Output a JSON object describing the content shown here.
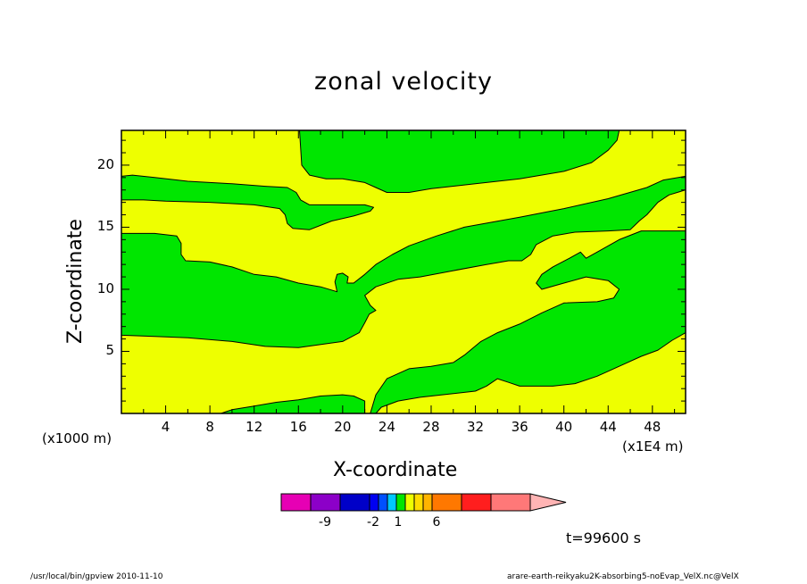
{
  "chart_data": {
    "type": "contour",
    "title": "zonal velocity",
    "xlabel": "X-coordinate",
    "ylabel": "Z-coordinate",
    "x_unit_note": "(x1E4 m)",
    "y_unit_note": "(x1000 m)",
    "xlim": [
      0,
      51
    ],
    "ylim": [
      0,
      22.8
    ],
    "x_ticks": [
      4,
      8,
      12,
      16,
      20,
      24,
      28,
      32,
      36,
      40,
      44,
      48
    ],
    "y_ticks": [
      5,
      10,
      15,
      20
    ],
    "fill_colors": {
      "yellow": "#eeff00",
      "green": "#00e600"
    },
    "regions": [
      {
        "name": "green-top",
        "color": "green",
        "outline": [
          [
            16.1,
            22.8
          ],
          [
            16.3,
            20
          ],
          [
            17,
            19.2
          ],
          [
            18.5,
            18.9
          ],
          [
            20,
            18.9
          ],
          [
            22,
            18.6
          ],
          [
            23,
            18.2
          ],
          [
            24,
            17.8
          ],
          [
            26,
            17.8
          ],
          [
            28,
            18.1
          ],
          [
            32,
            18.5
          ],
          [
            36,
            18.9
          ],
          [
            40,
            19.5
          ],
          [
            42.5,
            20.2
          ],
          [
            44,
            21.2
          ],
          [
            44.8,
            22
          ],
          [
            45,
            22.8
          ]
        ]
      },
      {
        "name": "green-left-upper-band",
        "color": "green",
        "outline": [
          [
            0,
            19.1
          ],
          [
            1,
            19.2
          ],
          [
            3,
            19
          ],
          [
            6,
            18.7
          ],
          [
            10,
            18.5
          ],
          [
            13,
            18.3
          ],
          [
            15,
            18.2
          ],
          [
            15.8,
            17.8
          ],
          [
            16.2,
            17.2
          ],
          [
            17,
            16.8
          ],
          [
            20,
            16.8
          ],
          [
            22,
            16.8
          ],
          [
            22.8,
            16.6
          ],
          [
            22.5,
            16.3
          ],
          [
            21,
            15.9
          ],
          [
            19,
            15.5
          ],
          [
            17,
            14.8
          ],
          [
            15.5,
            14.9
          ],
          [
            15,
            15.3
          ],
          [
            14.8,
            16
          ],
          [
            14.3,
            16.5
          ],
          [
            12,
            16.8
          ],
          [
            8,
            17
          ],
          [
            4,
            17.1
          ],
          [
            2,
            17.2
          ],
          [
            0,
            17.2
          ]
        ]
      },
      {
        "name": "green-middle-left-band",
        "color": "green",
        "outline": [
          [
            0,
            14.5
          ],
          [
            3,
            14.5
          ],
          [
            5,
            14.3
          ],
          [
            5.4,
            13.7
          ],
          [
            5.4,
            12.8
          ],
          [
            5.8,
            12.3
          ],
          [
            8,
            12.2
          ],
          [
            10,
            11.8
          ],
          [
            12,
            11.2
          ],
          [
            14,
            11
          ],
          [
            16,
            10.5
          ],
          [
            18,
            10.2
          ],
          [
            19.5,
            9.8
          ],
          [
            19.3,
            10.6
          ],
          [
            19.5,
            11.2
          ],
          [
            20,
            11.3
          ],
          [
            20.5,
            11
          ],
          [
            20.4,
            10.5
          ],
          [
            21,
            10.5
          ],
          [
            22,
            11.2
          ],
          [
            23,
            12
          ],
          [
            24.5,
            12.8
          ],
          [
            26,
            13.5
          ],
          [
            28.5,
            14.3
          ],
          [
            31,
            15
          ],
          [
            36,
            15.8
          ],
          [
            40,
            16.5
          ],
          [
            44,
            17.3
          ],
          [
            47.5,
            18.2
          ],
          [
            49,
            18.8
          ],
          [
            51,
            19.1
          ],
          [
            51,
            18
          ],
          [
            49.5,
            17.6
          ],
          [
            48.5,
            17
          ],
          [
            47.5,
            16
          ],
          [
            46.8,
            15.5
          ],
          [
            46,
            14.8
          ],
          [
            44,
            14.7
          ],
          [
            41,
            14.6
          ],
          [
            39,
            14.3
          ],
          [
            37.5,
            13.6
          ],
          [
            37,
            12.8
          ],
          [
            36.2,
            12.3
          ],
          [
            35,
            12.3
          ],
          [
            33,
            12
          ],
          [
            30,
            11.5
          ],
          [
            27,
            11
          ],
          [
            25,
            10.8
          ],
          [
            23,
            10.2
          ],
          [
            22,
            9.5
          ],
          [
            22.5,
            8.7
          ],
          [
            23,
            8.3
          ],
          [
            22.4,
            8
          ],
          [
            22,
            7.3
          ],
          [
            21.5,
            6.5
          ],
          [
            20,
            5.8
          ],
          [
            16,
            5.3
          ],
          [
            13,
            5.4
          ],
          [
            10,
            5.8
          ],
          [
            6,
            6.1
          ],
          [
            3,
            6.2
          ],
          [
            0,
            6.3
          ]
        ]
      },
      {
        "name": "green-lower-right-band",
        "color": "green",
        "outline": [
          [
            22.5,
            0
          ],
          [
            23,
            1.5
          ],
          [
            24,
            2.8
          ],
          [
            26,
            3.6
          ],
          [
            28,
            3.8
          ],
          [
            30,
            4.1
          ],
          [
            31,
            4.7
          ],
          [
            32.5,
            5.8
          ],
          [
            34,
            6.5
          ],
          [
            36,
            7.2
          ],
          [
            38,
            8.1
          ],
          [
            40,
            8.9
          ],
          [
            43,
            9
          ],
          [
            44.5,
            9.3
          ],
          [
            45,
            10
          ],
          [
            44,
            10.7
          ],
          [
            42,
            11
          ],
          [
            40,
            10.5
          ],
          [
            38,
            10
          ],
          [
            37.5,
            10.5
          ],
          [
            38,
            11.2
          ],
          [
            39,
            11.8
          ],
          [
            40.5,
            12.5
          ],
          [
            41.5,
            13
          ],
          [
            42,
            12.5
          ],
          [
            43,
            13
          ],
          [
            45,
            14
          ],
          [
            47,
            14.7
          ],
          [
            51,
            14.7
          ],
          [
            51,
            6.5
          ],
          [
            49.8,
            5.9
          ],
          [
            48.5,
            5.1
          ],
          [
            47,
            4.6
          ],
          [
            45,
            3.8
          ],
          [
            43,
            3
          ],
          [
            41,
            2.4
          ],
          [
            39,
            2.2
          ],
          [
            36,
            2.2
          ],
          [
            35,
            2.5
          ],
          [
            34,
            2.8
          ],
          [
            33,
            2.2
          ],
          [
            32,
            1.8
          ],
          [
            29,
            1.5
          ],
          [
            27,
            1.3
          ],
          [
            25,
            1
          ],
          [
            23.5,
            0.5
          ],
          [
            23,
            0
          ]
        ]
      },
      {
        "name": "green-bottom-strip",
        "color": "green",
        "outline": [
          [
            9,
            0
          ],
          [
            10,
            0.3
          ],
          [
            12,
            0.6
          ],
          [
            14,
            0.9
          ],
          [
            16,
            1.1
          ],
          [
            18,
            1.4
          ],
          [
            20,
            1.5
          ],
          [
            21,
            1.4
          ],
          [
            22,
            1
          ],
          [
            22,
            0
          ]
        ]
      }
    ],
    "colorbar": {
      "colors": [
        "#e600b4",
        "#8c00c8",
        "#0000c8",
        "#0000f0",
        "#0050ff",
        "#00c8ff",
        "#00e600",
        "#eeff00",
        "#ffdc00",
        "#ffb400",
        "#ff7800",
        "#ff1e1e",
        "#ff7878",
        "#ffb4b4"
      ],
      "tick_labels": [
        "-9",
        "-2",
        "1",
        "6"
      ]
    },
    "time_label": "t=99600 s"
  },
  "footer": {
    "left": "/usr/local/bin/gpview  2010-11-10",
    "right": "arare-earth-reikyaku2K-absorbing5-noEvap_VelX.nc@VelX"
  }
}
